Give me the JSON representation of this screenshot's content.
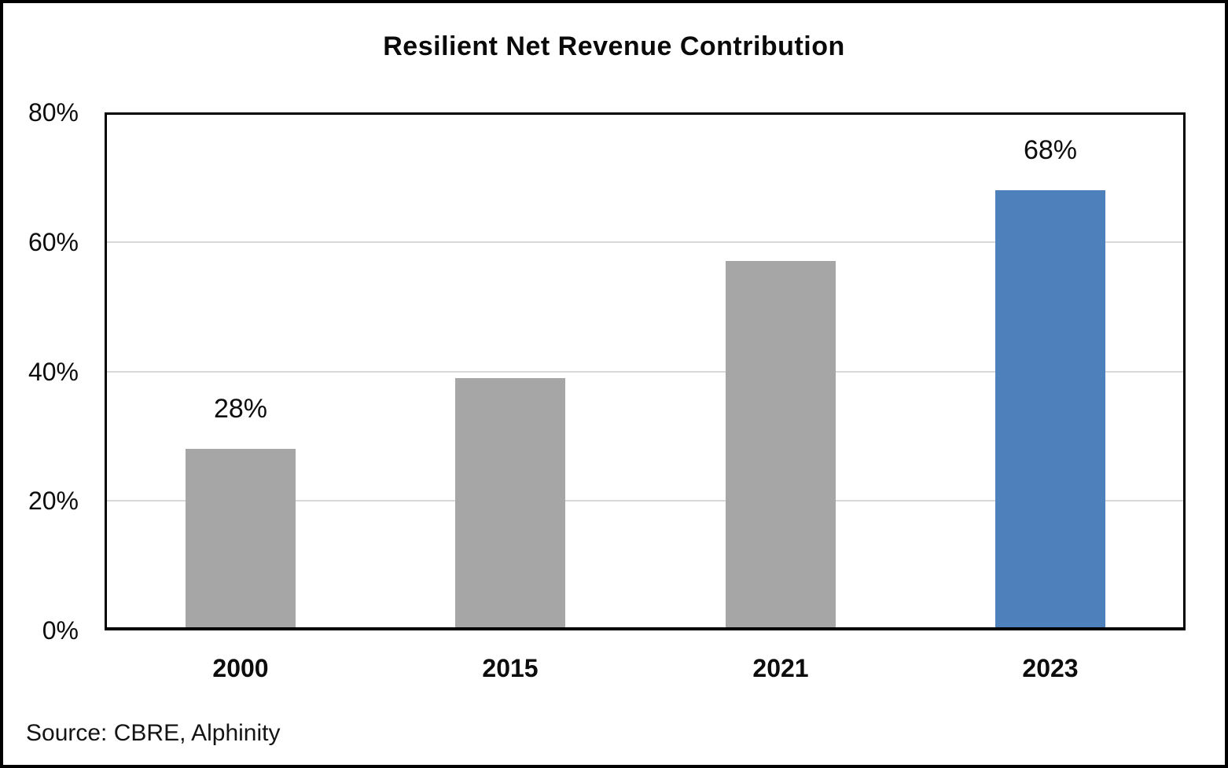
{
  "source_note": "Source: CBRE, Alphinity",
  "chart_data": {
    "type": "bar",
    "title": "Resilient Net Revenue Contribution",
    "categories": [
      "2000",
      "2015",
      "2021",
      "2023"
    ],
    "values": [
      28,
      39,
      57,
      68
    ],
    "data_labels": [
      "28%",
      "",
      "",
      "68%"
    ],
    "bar_colors": [
      "#A6A6A6",
      "#A6A6A6",
      "#A6A6A6",
      "#4E80BC"
    ],
    "xlabel": "",
    "ylabel": "",
    "ylim": [
      0,
      80
    ],
    "yticks": [
      {
        "value": 0,
        "label": "0%"
      },
      {
        "value": 20,
        "label": "20%"
      },
      {
        "value": 40,
        "label": "40%"
      },
      {
        "value": 60,
        "label": "60%"
      },
      {
        "value": 80,
        "label": "80%"
      }
    ],
    "gridline_values": [
      20,
      40,
      60
    ],
    "grid": true,
    "legend_position": "none",
    "colors": {
      "default_bar": "#A6A6A6",
      "highlight_bar": "#4E80BC",
      "gridline": "#D9D9D9",
      "axis": "#000000",
      "background": "#FFFFFF",
      "text": "#0D0D0D"
    }
  }
}
